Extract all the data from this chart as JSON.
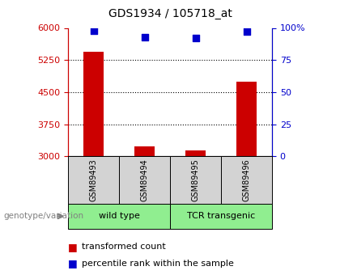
{
  "title": "GDS1934 / 105718_at",
  "samples": [
    "GSM89493",
    "GSM89494",
    "GSM89495",
    "GSM89496"
  ],
  "group_labels": [
    "wild type",
    "TCR transgenic"
  ],
  "transformed_counts": [
    5450,
    3230,
    3130,
    4750
  ],
  "percentile_ranks": [
    98,
    93,
    92,
    97
  ],
  "ylim_left": [
    3000,
    6000
  ],
  "ylim_right": [
    0,
    100
  ],
  "yticks_left": [
    3000,
    3750,
    4500,
    5250,
    6000
  ],
  "yticks_right": [
    0,
    25,
    50,
    75,
    100
  ],
  "yticklabels_right": [
    "0",
    "25",
    "50",
    "75",
    "100%"
  ],
  "bar_color": "#cc0000",
  "scatter_color": "#0000cc",
  "left_axis_color": "#cc0000",
  "right_axis_color": "#0000cc",
  "group_color": "#90ee90",
  "sample_box_color": "#d3d3d3",
  "legend_bar_label": "transformed count",
  "legend_scatter_label": "percentile rank within the sample",
  "genotype_label": "genotype/variation",
  "scatter_size": 35,
  "bar_width": 0.4
}
